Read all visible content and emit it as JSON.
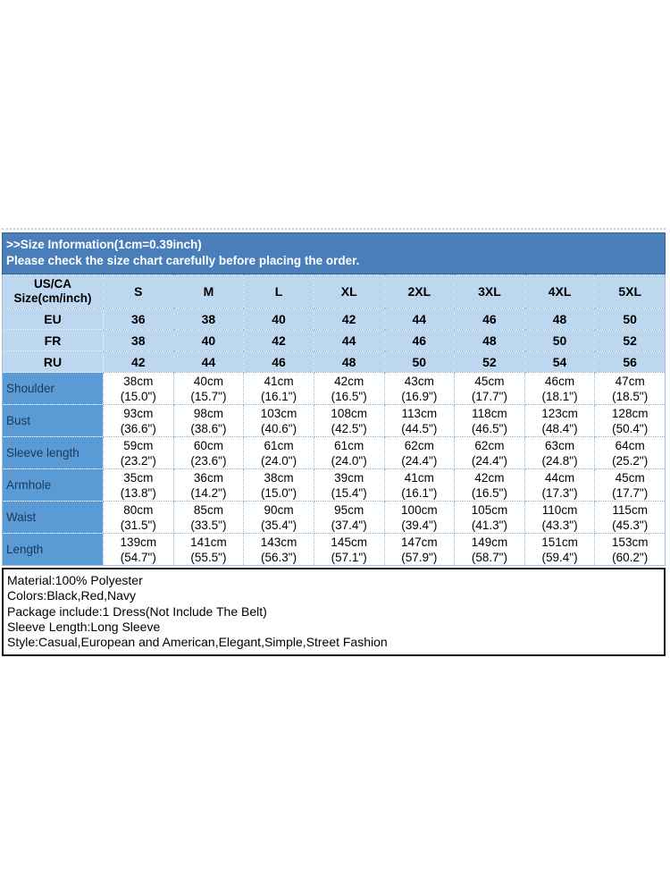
{
  "banner": {
    "title": ">>Size Information(1cm=0.39inch)",
    "subtitle": "Please check the size chart carefully before placing the order."
  },
  "size_chart": {
    "corner_header_line1": "US/CA",
    "corner_header_line2": "Size(cm/inch)",
    "size_columns": [
      "S",
      "M",
      "L",
      "XL",
      "2XL",
      "3XL",
      "4XL",
      "5XL"
    ],
    "region_rows": [
      {
        "label": "EU",
        "values": [
          "36",
          "38",
          "40",
          "42",
          "44",
          "46",
          "48",
          "50"
        ]
      },
      {
        "label": "FR",
        "values": [
          "38",
          "40",
          "42",
          "44",
          "46",
          "48",
          "50",
          "52"
        ]
      },
      {
        "label": "RU",
        "values": [
          "42",
          "44",
          "46",
          "48",
          "50",
          "52",
          "54",
          "56"
        ]
      }
    ],
    "measurement_rows": [
      {
        "label": "Shoulder",
        "values_cm": [
          "38cm",
          "40cm",
          "41cm",
          "42cm",
          "43cm",
          "45cm",
          "46cm",
          "47cm"
        ],
        "values_inch": [
          "(15.0\")",
          "(15.7\")",
          "(16.1\")",
          "(16.5\")",
          "(16.9\")",
          "(17.7\")",
          "(18.1\")",
          "(18.5\")"
        ]
      },
      {
        "label": "Bust",
        "values_cm": [
          "93cm",
          "98cm",
          "103cm",
          "108cm",
          "113cm",
          "118cm",
          "123cm",
          "128cm"
        ],
        "values_inch": [
          "(36.6\")",
          "(38.6\")",
          "(40.6\")",
          "(42.5\")",
          "(44.5\")",
          "(46.5\")",
          "(48.4\")",
          "(50.4\")"
        ]
      },
      {
        "label": "Sleeve length",
        "values_cm": [
          "59cm",
          "60cm",
          "61cm",
          "61cm",
          "62cm",
          "62cm",
          "63cm",
          "64cm"
        ],
        "values_inch": [
          "(23.2\")",
          "(23.6\")",
          "(24.0\")",
          "(24.0\")",
          "(24.4\")",
          "(24.4\")",
          "(24.8\")",
          "(25.2\")"
        ]
      },
      {
        "label": "Armhole",
        "values_cm": [
          "35cm",
          "36cm",
          "38cm",
          "39cm",
          "41cm",
          "42cm",
          "44cm",
          "45cm"
        ],
        "values_inch": [
          "(13.8\")",
          "(14.2\")",
          "(15.0\")",
          "(15.4\")",
          "(16.1\")",
          "(16.5\")",
          "(17.3\")",
          "(17.7\")"
        ]
      },
      {
        "label": "Waist",
        "values_cm": [
          "80cm",
          "85cm",
          "90cm",
          "95cm",
          "100cm",
          "105cm",
          "110cm",
          "115cm"
        ],
        "values_inch": [
          "(31.5\")",
          "(33.5\")",
          "(35.4\")",
          "(37.4\")",
          "(39.4\")",
          "(41.3\")",
          "(43.3\")",
          "(45.3\")"
        ]
      },
      {
        "label": "Length",
        "values_cm": [
          "139cm",
          "141cm",
          "143cm",
          "145cm",
          "147cm",
          "149cm",
          "151cm",
          "153cm"
        ],
        "values_inch": [
          "(54.7\")",
          "(55.5\")",
          "(56.3\")",
          "(57.1\")",
          "(57.9\")",
          "(58.7\")",
          "(59.4\")",
          "(60.2\")"
        ]
      }
    ]
  },
  "details": {
    "lines": [
      "Material:100% Polyester",
      "Colors:Black,Red,Navy",
      "Package include:1 Dress(Not Include The Belt)",
      "Sleeve Length:Long Sleeve",
      "Style:Casual,European and American,Elegant,Simple,Street Fashion"
    ]
  },
  "colors": {
    "banner_bg": "#4a7ebb",
    "banner_text": "#ffffff",
    "header_row_bg": "#bdd7ee",
    "measurement_label_bg": "#5b9bd5",
    "measurement_label_text": "#1a3a5c",
    "grid_line": "#8fb9df",
    "details_border": "#141414"
  }
}
